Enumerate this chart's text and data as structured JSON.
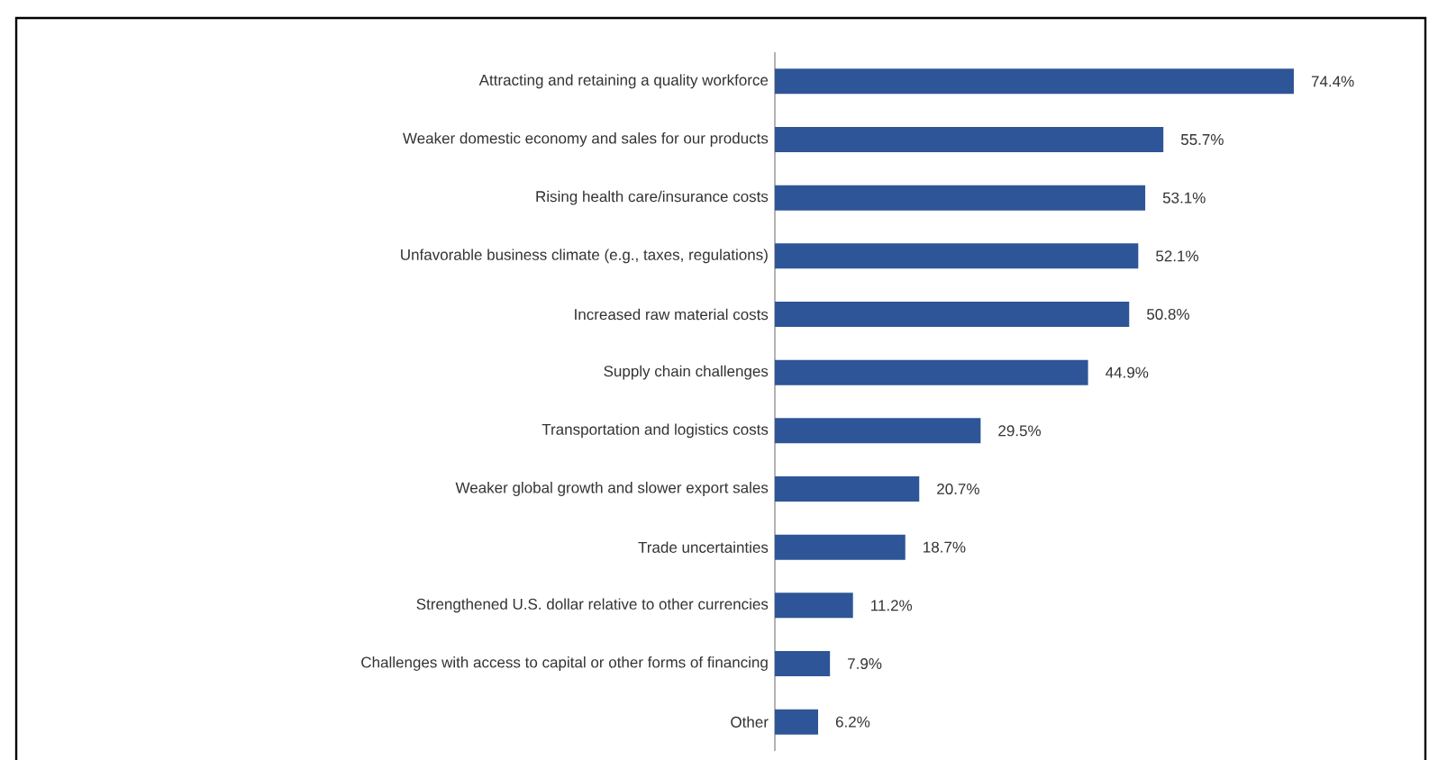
{
  "chart_data": {
    "type": "bar",
    "orientation": "horizontal",
    "color": "#2e5597",
    "categories": [
      "Attracting and retaining a quality workforce",
      "Weaker domestic economy and sales for our products",
      "Rising health care/insurance costs",
      "Unfavorable business climate (e.g., taxes, regulations)",
      "Increased raw material costs",
      "Supply chain challenges",
      "Transportation and logistics costs",
      "Weaker global growth and slower export sales",
      "Trade uncertainties",
      "Strengthened U.S. dollar relative to other currencies",
      "Challenges with access to capital or other forms of financing",
      "Other"
    ],
    "values": [
      74.4,
      55.7,
      53.1,
      52.1,
      50.8,
      44.9,
      29.5,
      20.7,
      18.7,
      11.2,
      7.9,
      6.2
    ],
    "value_labels": [
      "74.4%",
      "55.7%",
      "53.1%",
      "52.1%",
      "50.8%",
      "44.9%",
      "29.5%",
      "20.7%",
      "18.7%",
      "11.2%",
      "7.9%",
      "6.2%"
    ]
  }
}
